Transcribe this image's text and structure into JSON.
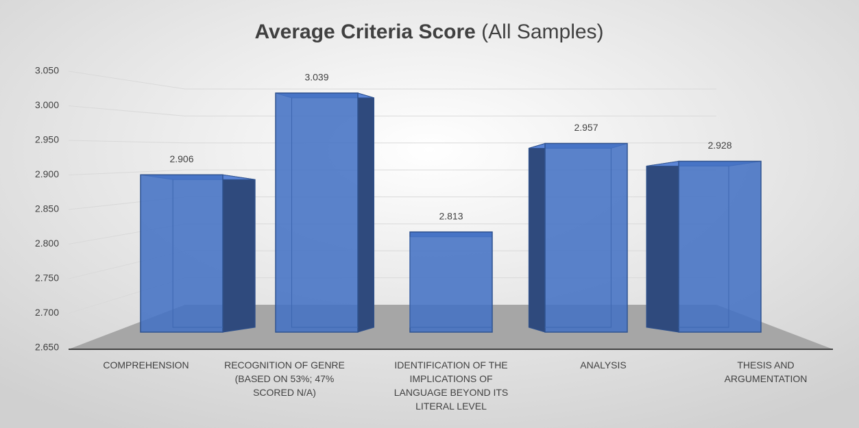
{
  "chart_data": {
    "type": "bar3d",
    "title": "Average Criteria Score",
    "subtitle": "(All Samples)",
    "categories": [
      "COMPREHENSION",
      "RECOGNITION OF GENRE (BASED ON 53%; 47% SCORED N/A)",
      "IDENTIFICATION OF THE IMPLICATIONS OF LANGUAGE BEYOND ITS LITERAL LEVEL",
      "ANALYSIS",
      "THESIS AND ARGUMENTATION"
    ],
    "values": [
      2.906,
      3.039,
      2.813,
      2.957,
      2.928
    ],
    "color": "#4472c4",
    "ylim": [
      2.65,
      3.05
    ],
    "yticks": [
      {
        "value": 2.65,
        "label": "2.650"
      },
      {
        "value": 2.7,
        "label": "2.700"
      },
      {
        "value": 2.75,
        "label": "2.750"
      },
      {
        "value": 2.8,
        "label": "2.800"
      },
      {
        "value": 2.85,
        "label": "2.850"
      },
      {
        "value": 2.9,
        "label": "2.900"
      },
      {
        "value": 2.95,
        "label": "2.950"
      },
      {
        "value": 3.0,
        "label": "3.000"
      },
      {
        "value": 3.05,
        "label": "3.050"
      }
    ],
    "grid": true
  }
}
